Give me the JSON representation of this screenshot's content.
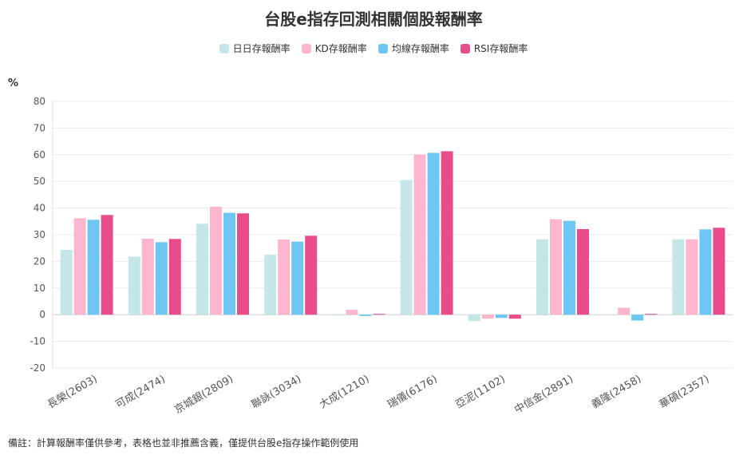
{
  "title": "台股e指存回測相關個股報酬率",
  "unit_label": "%",
  "footnote": "備註：計算報酬率僅供參考，表格也並非推薦含義，僅提供台股e指存操作範例使用",
  "colors": {
    "daily": "#c5e6e8",
    "kd": "#fdb6cd",
    "ma": "#6ec6f2",
    "rsi": "#e84c8b"
  },
  "chart_data": {
    "type": "bar",
    "title": "台股e指存回測相關個股報酬率",
    "ylabel": "%",
    "ylim": [
      -20,
      80
    ],
    "yticks": [
      80,
      70,
      60,
      50,
      40,
      30,
      20,
      10,
      0,
      -10,
      -20
    ],
    "grid": true,
    "legend_position": "top",
    "categories": [
      "長榮(2603)",
      "可成(2474)",
      "京城銀(2809)",
      "聯詠(3034)",
      "大成(1210)",
      "瑞儀(6176)",
      "亞泥(1102)",
      "中信金(2891)",
      "義隆(2458)",
      "華碩(2357)"
    ],
    "series": [
      {
        "name": "日日存報酬率",
        "values": [
          24.3,
          21.8,
          34.1,
          22.5,
          -0.3,
          50.5,
          -2.4,
          28.3,
          0,
          28.3
        ]
      },
      {
        "name": "KD存報酬率",
        "values": [
          36.2,
          28.5,
          40.5,
          28.2,
          1.8,
          60.1,
          -1.5,
          35.8,
          2.6,
          28.3
        ]
      },
      {
        "name": "均線存報酬率",
        "values": [
          35.6,
          27.2,
          38.2,
          27.4,
          -0.5,
          60.7,
          -1.2,
          35.2,
          -2.2,
          32.0
        ]
      },
      {
        "name": "RSI存報酬率",
        "values": [
          37.4,
          28.4,
          38.0,
          29.6,
          0.3,
          61.3,
          -1.5,
          32.1,
          0.3,
          32.6
        ]
      }
    ]
  }
}
